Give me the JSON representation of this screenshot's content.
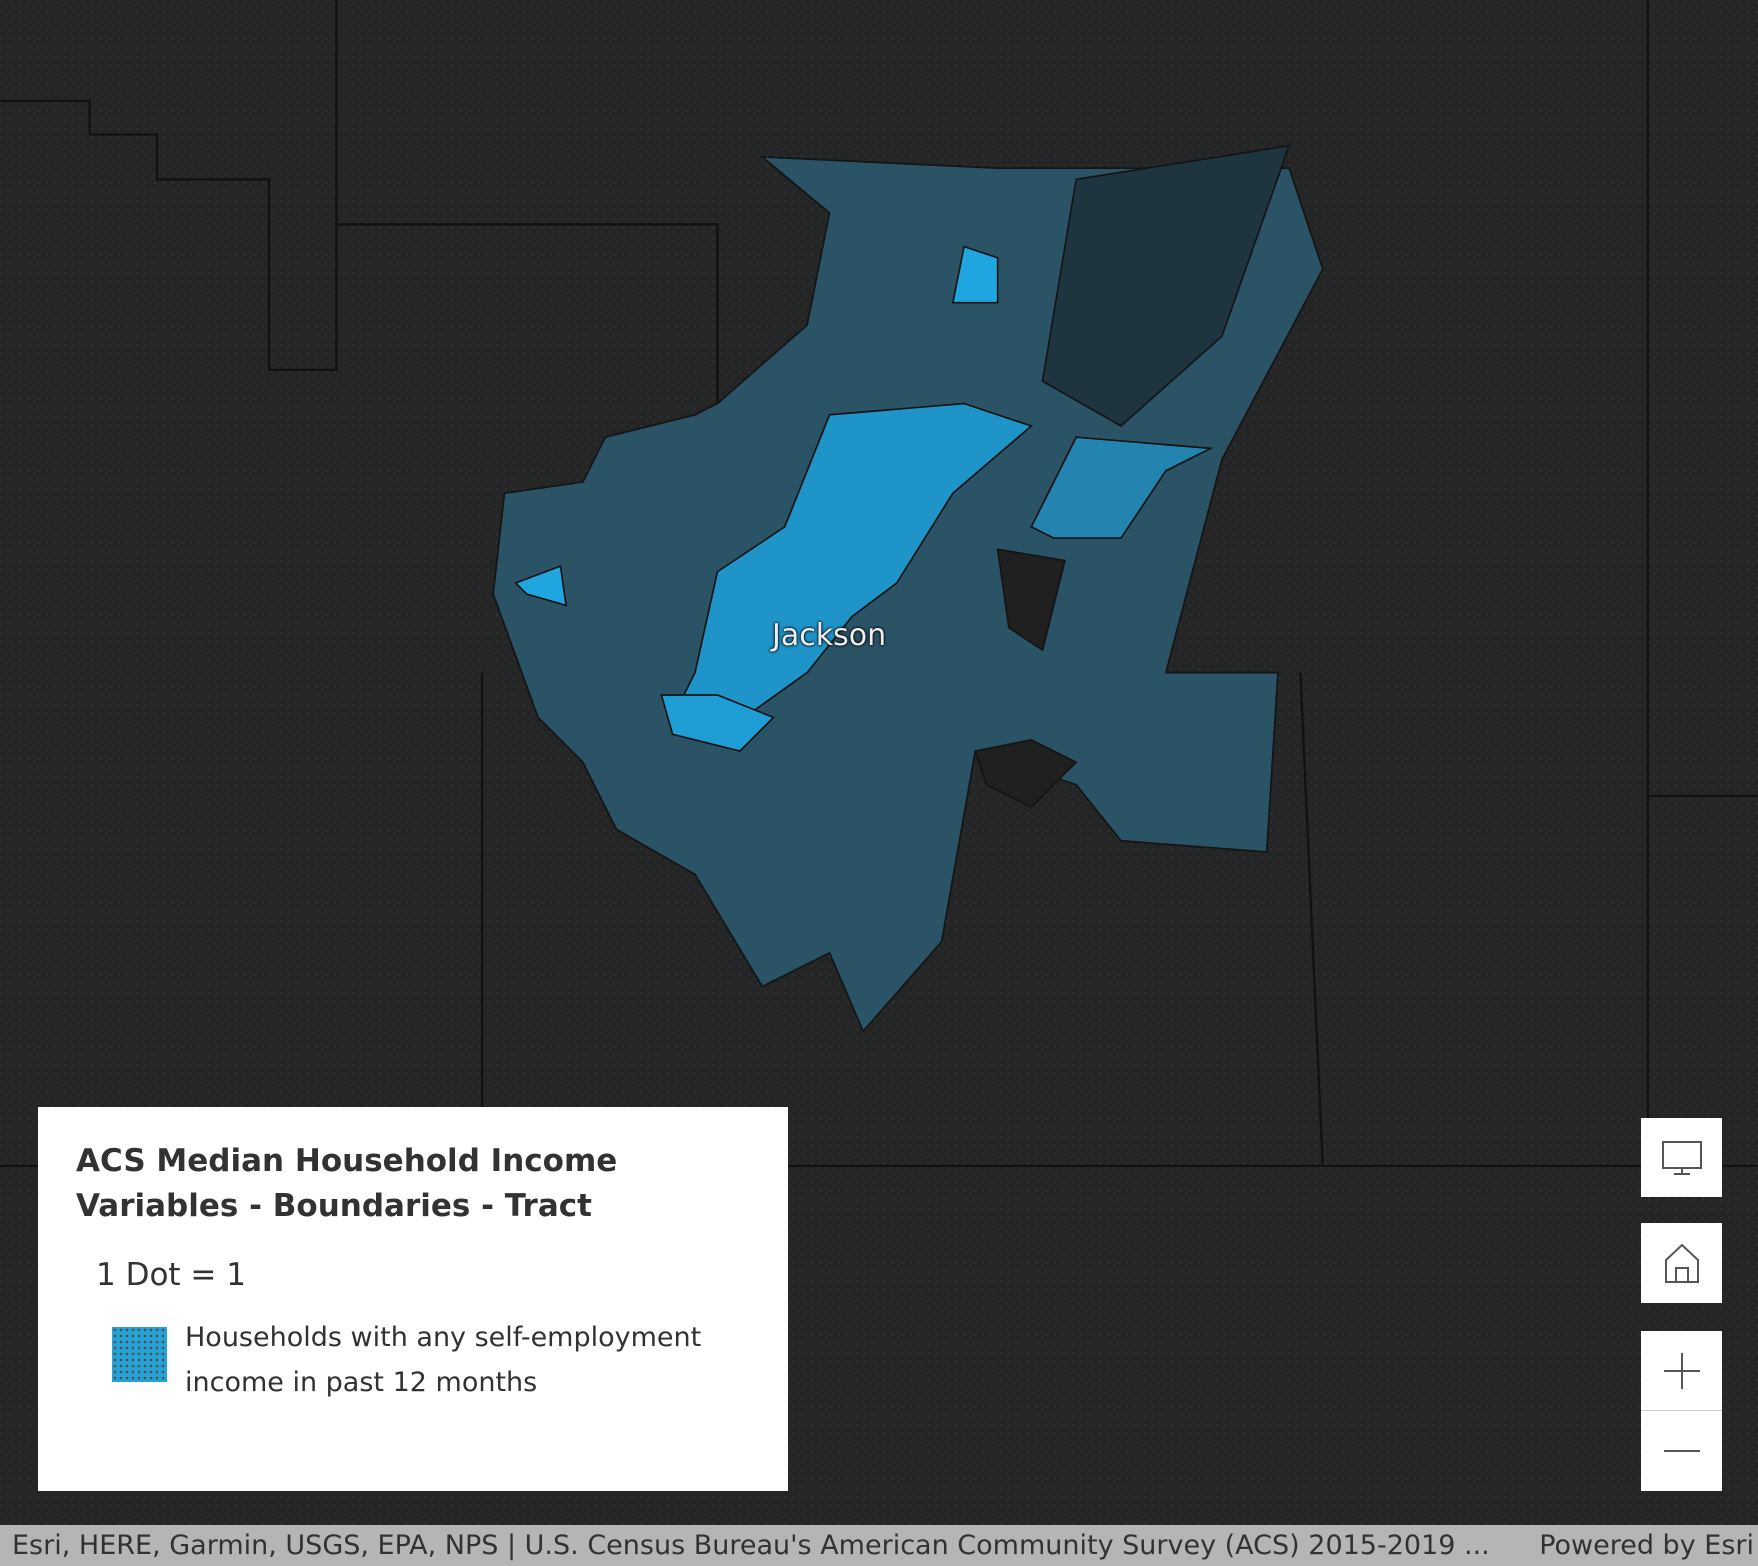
{
  "map": {
    "place_label": "Jackson"
  },
  "legend": {
    "title": "ACS Median Household Income Variables - Boundaries - Tract",
    "dot_value": "1 Dot = 1",
    "item": "Households with any self-employment income in past 12 months"
  },
  "attribution": {
    "sources": "Esri, HERE, Garmin, USGS, EPA, NPS | U.S. Census Bureau's American Community Survey (ACS) 2015-2019 ...",
    "powered_by": "Powered by Esri"
  }
}
